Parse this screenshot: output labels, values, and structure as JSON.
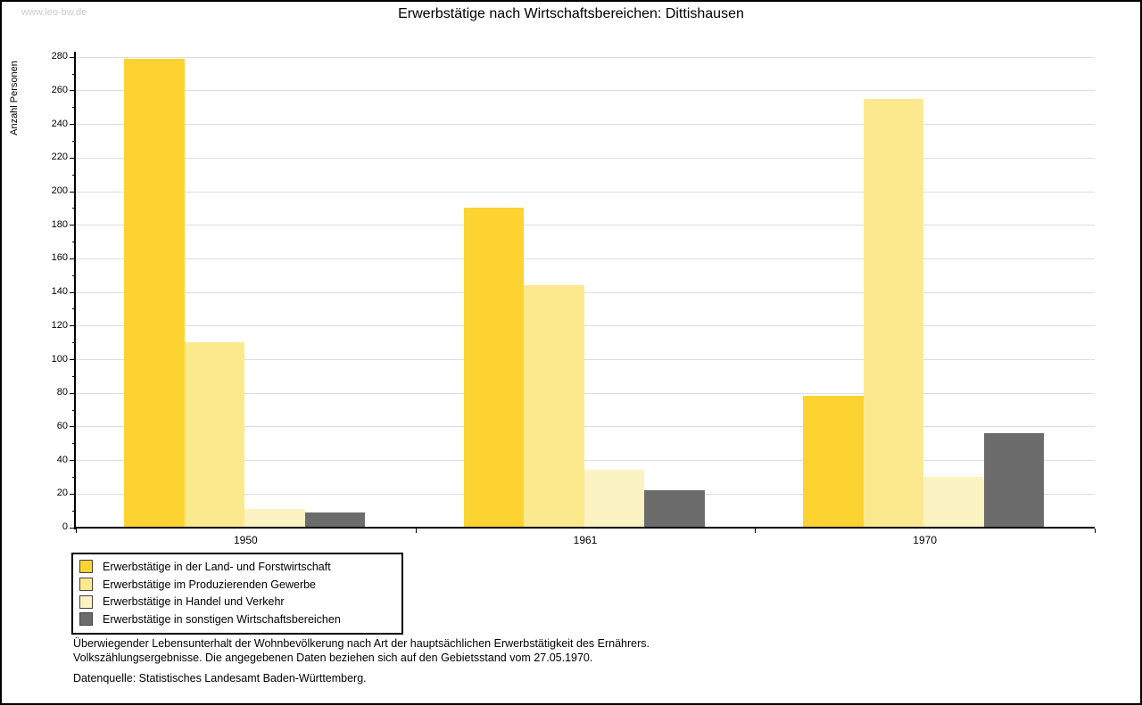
{
  "watermark": "www.leo-bw.de",
  "chart_data": {
    "type": "bar",
    "title": "Erwerbstätige nach Wirtschaftsbereichen: Dittishausen",
    "ylabel": "Anzahl Personen",
    "xlabel": "",
    "ylim": [
      0,
      280
    ],
    "ytick_step": 20,
    "ytick_minor_step": 10,
    "grid": true,
    "grid_color": "#dddddd",
    "axis_color": "#000000",
    "legend_position": "bottom-left",
    "categories": [
      "1950",
      "1961",
      "1970"
    ],
    "series": [
      {
        "name": "Erwerbstätige in der Land- und Forstwirtschaft",
        "color": "#FCD330",
        "values": [
          279,
          190,
          78
        ]
      },
      {
        "name": "Erwerbstätige im Produzierenden Gewerbe",
        "color": "#FCE98E",
        "values": [
          110,
          144,
          255
        ]
      },
      {
        "name": "Erwerbstätige in Handel und Verkehr",
        "color": "#FCF3C3",
        "values": [
          11,
          34,
          30
        ]
      },
      {
        "name": "Erwerbstätige in sonstigen Wirtschaftsbereichen",
        "color": "#6C6C6C",
        "values": [
          9,
          22,
          56
        ]
      }
    ]
  },
  "footnotes": {
    "line1": "Überwiegender Lebensunterhalt der Wohnbevölkerung nach Art der hauptsächlichen Erwerbstätigkeit des Ernährers.",
    "line2": "Volkszählungsergebnisse. Die angegebenen Daten beziehen sich auf den Gebietsstand vom 27.05.1970."
  },
  "source": "Datenquelle: Statistisches Landesamt Baden-Württemberg."
}
